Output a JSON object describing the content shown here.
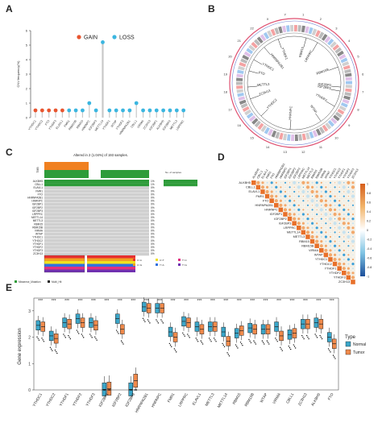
{
  "panels": {
    "a": {
      "letter": "A",
      "legend": {
        "gain": "GAIN",
        "loss": "LOSS"
      },
      "ylabel": "CNV.frequency(%)",
      "colors": {
        "gain": "#e8552f",
        "loss": "#3bb6e0",
        "stem": "#c8c8c8"
      },
      "chart_data": {
        "type": "scatter",
        "categories": [
          "YTHDC1",
          "YTHDC2",
          "FTO",
          "YTHDF3",
          "ELAVL1",
          "FMR1",
          "RBM15B",
          "RBM15",
          "HNRNPC",
          "IGF2BP3",
          "METTL14",
          "YTHDF1",
          "WTAP",
          "YTHDF2",
          "HNRNPA2B1",
          "CBLL1",
          "VIRMA",
          "ZC3H13",
          "IGF2BP1",
          "ALKBH5",
          "IGF2BP2",
          "METTL3",
          "LRPPRC"
        ],
        "series": [
          {
            "name": "GAIN",
            "values": [
              0.5,
              0.5,
              0.5,
              0.5,
              0.5,
              0,
              0,
              0,
              0,
              0,
              0,
              0,
              0,
              0,
              0,
              0,
              0,
              0,
              0,
              0,
              0,
              0,
              0
            ]
          },
          {
            "name": "LOSS",
            "values": [
              0,
              0,
              0,
              0,
              0,
              0.5,
              0.5,
              0.5,
              1.0,
              0.5,
              5.2,
              0.5,
              0.5,
              0.5,
              0.5,
              1.0,
              0.5,
              0.5,
              0.5,
              0.5,
              0.5,
              0.5,
              0.5
            ]
          }
        ],
        "yticks": [
          "0",
          "1",
          "2",
          "3",
          "4",
          "5",
          "6"
        ],
        "ylim": [
          0,
          6
        ]
      }
    },
    "b": {
      "letter": "B",
      "genes": [
        "YTHDF1",
        "RBM15",
        "LRPPRC",
        "RBM15B",
        "IGF2BP2",
        "YTHDC1",
        "FTO",
        "HNRNPA2B1",
        "METTL3",
        "ZC3H13",
        "YTHDC2",
        "HNRNPC",
        "WTAP",
        "YTHDF2",
        "IGF2BP3"
      ],
      "chrom_numbers": [
        "1",
        "2",
        "3",
        "4",
        "5",
        "6",
        "7",
        "8",
        "9",
        "10",
        "11",
        "12",
        "13",
        "14",
        "15",
        "16",
        "17",
        "18",
        "19",
        "20",
        "21",
        "22",
        "X",
        "Y"
      ]
    },
    "c": {
      "letter": "C",
      "title": "Altered in 2 (1.04%) of 193 samples.",
      "genes": [
        "ALKBH5",
        "CBLL1",
        "ELAVL1",
        "FMR1",
        "FTO",
        "HNRNPA2B1",
        "HNRNPC",
        "IGF2BP1",
        "IGF2BP2",
        "IGF2BP3",
        "LRPPRC",
        "METTL14",
        "METTL3",
        "RBM15",
        "RBM15B",
        "VIRMA",
        "WTAP",
        "YTHDC1",
        "YTHDC2",
        "YTHDF1",
        "YTHDF2",
        "YTHDF3",
        "ZC3H13"
      ],
      "percents": [
        "1%",
        "1%",
        "0%",
        "0%",
        "0%",
        "0%",
        "0%",
        "0%",
        "0%",
        "0%",
        "0%",
        "0%",
        "0%",
        "0%",
        "0%",
        "0%",
        "0%",
        "0%",
        "0%",
        "0%",
        "0%",
        "0%",
        "0%"
      ],
      "tmb_label": "TMB",
      "side_label": "No. of samples",
      "legend_items": [
        "Missense_Mutation",
        "Multi_Hit"
      ],
      "snv_legend": [
        "C>A",
        "C>G",
        "C>T",
        "T>A",
        "T>C",
        "T>G"
      ],
      "colors": {
        "missense": "#2e9c3a",
        "multi": "#222222",
        "tmb": "#f08020",
        "bg": "#cfcfcf"
      }
    },
    "d": {
      "letter": "D",
      "genes": [
        "ALKBH5",
        "CBLL1",
        "ELAVL1",
        "FMR1",
        "FTO",
        "HNRNPA2B1",
        "HNRNPC",
        "IGF2BP1",
        "IGF2BP2",
        "IGF2BP3",
        "LRPPRC",
        "METTL14",
        "METTL3",
        "RBM15",
        "RBM15B",
        "VIRMA",
        "WTAP",
        "YTHDC1",
        "YTHDC2",
        "YTHDF1",
        "YTHDF2",
        "YTHDF3",
        "ZC3H13"
      ],
      "scale": [
        "1",
        "0.8",
        "0.6",
        "0.4",
        "0.2",
        "0",
        "-0.2",
        "-0.4",
        "-0.6",
        "-0.8",
        "-1"
      ]
    },
    "e": {
      "letter": "E",
      "ylabel": "Gene expression",
      "legend_title": "Type",
      "legend_items": [
        {
          "label": "Normal",
          "color": "#3aa6c9"
        },
        {
          "label": "Tumor",
          "color": "#f08a4b"
        }
      ],
      "sig": "***",
      "chart_data": {
        "type": "box",
        "categories": [
          "YTHDC1",
          "YTHDC2",
          "YTHDF1",
          "YTHDF2",
          "YTHDF3",
          "IGF2BP1",
          "IGF2BP2",
          "IGF2BP3",
          "HNRNPA2B1",
          "HNRNPC",
          "FMR1",
          "LRPPRC",
          "ELAVL1",
          "METTL3",
          "METTL14",
          "RBM15",
          "RBM15B",
          "WTAP",
          "VIRMA",
          "CBLL1",
          "ZC3H13",
          "ALKBH5",
          "FTO"
        ],
        "yticks": [
          "0",
          "1",
          "2",
          "3"
        ],
        "ylim": [
          0,
          3.3
        ],
        "series": [
          {
            "name": "Normal",
            "values": [
              2.45,
              2.05,
              2.55,
              2.7,
              2.55,
              0.02,
              2.7,
              0.02,
              3.15,
              3.1,
              2.2,
              2.6,
              2.4,
              2.4,
              2.2,
              2.15,
              2.35,
              2.3,
              2.4,
              2.1,
              2.5,
              2.55,
              2.0
            ]
          },
          {
            "name": "Tumor",
            "values": [
              2.4,
              1.95,
              2.5,
              2.55,
              2.45,
              0.05,
              2.3,
              0.35,
              3.1,
              3.1,
              2.0,
              2.55,
              2.3,
              2.4,
              1.85,
              2.25,
              2.3,
              2.3,
              2.05,
              2.15,
              2.5,
              2.5,
              1.75
            ]
          }
        ]
      }
    }
  }
}
